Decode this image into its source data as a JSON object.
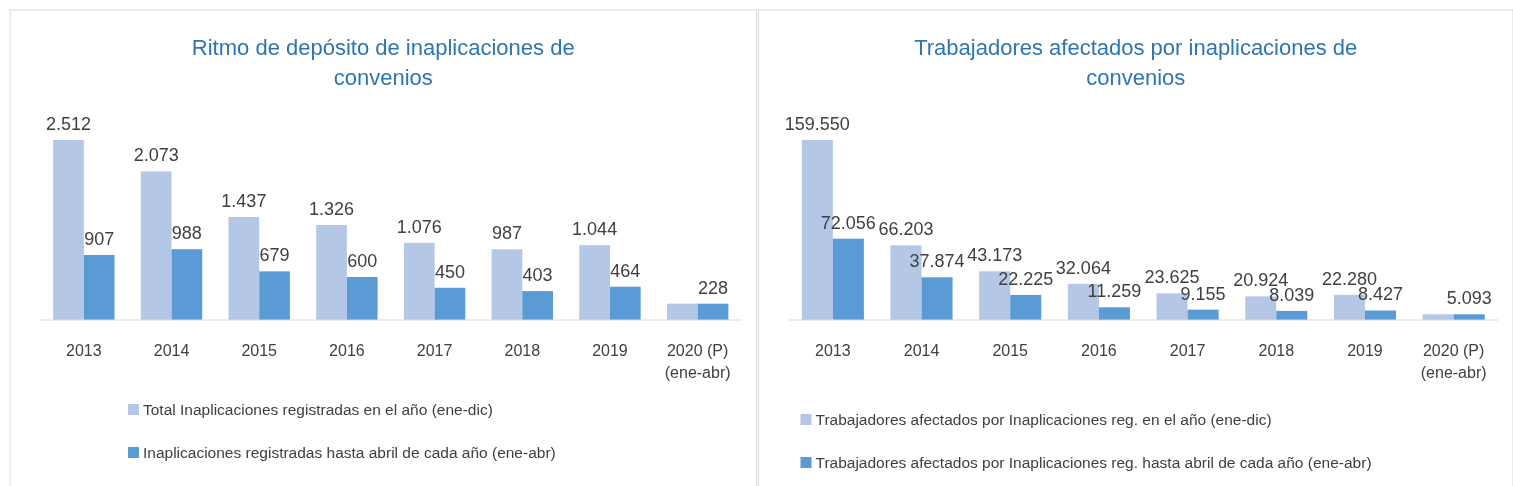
{
  "chart_data": [
    {
      "type": "bar",
      "title": "Ritmo de depósito de inaplicaciones de convenios",
      "categories": [
        "2013",
        "2014",
        "2015",
        "2016",
        "2017",
        "2018",
        "2019",
        "2020 (P) (ene-abr)"
      ],
      "legend": "bottom",
      "series": [
        {
          "name": "Total Inaplicaciones registradas en el año (ene-dic)",
          "color": "#b4c7e7",
          "values": [
            2512,
            2073,
            1437,
            1326,
            1076,
            987,
            1044,
            228
          ],
          "value_labels": [
            "2.512",
            "2.073",
            "1.437",
            "1.326",
            "1.076",
            "987",
            "1.044",
            null
          ]
        },
        {
          "name": "Inaplicaciones registradas hasta abril de cada año (ene-abr)",
          "color": "#5b9bd5",
          "values": [
            907,
            988,
            679,
            600,
            450,
            403,
            464,
            228
          ],
          "value_labels": [
            "907",
            "988",
            "679",
            "600",
            "450",
            "403",
            "464",
            "228"
          ]
        }
      ]
    },
    {
      "type": "bar",
      "title": "Trabajadores afectados por inaplicaciones de convenios",
      "categories": [
        "2013",
        "2014",
        "2015",
        "2016",
        "2017",
        "2018",
        "2019",
        "2020 (P) (ene-abr)"
      ],
      "legend": "bottom",
      "series": [
        {
          "name": "Trabajadores afectados por Inaplicaciones reg. en el año (ene-dic)",
          "color": "#b4c7e7",
          "values": [
            159550,
            66203,
            43173,
            32064,
            23625,
            20924,
            22280,
            5093
          ],
          "value_labels": [
            "159.550",
            "66.203",
            "43.173",
            "32.064",
            "23.625",
            "20.924",
            "22.280",
            null
          ]
        },
        {
          "name": "Trabajadores afectados por Inaplicaciones reg. hasta abril de cada año (ene-abr)",
          "color": "#5b9bd5",
          "values": [
            72056,
            37874,
            22225,
            11259,
            9155,
            8039,
            8427,
            5093
          ],
          "value_labels": [
            "72.056",
            "37.874",
            "22.225",
            "11.259",
            "9.155",
            "8.039",
            "8.427",
            "5.093"
          ]
        }
      ]
    }
  ]
}
